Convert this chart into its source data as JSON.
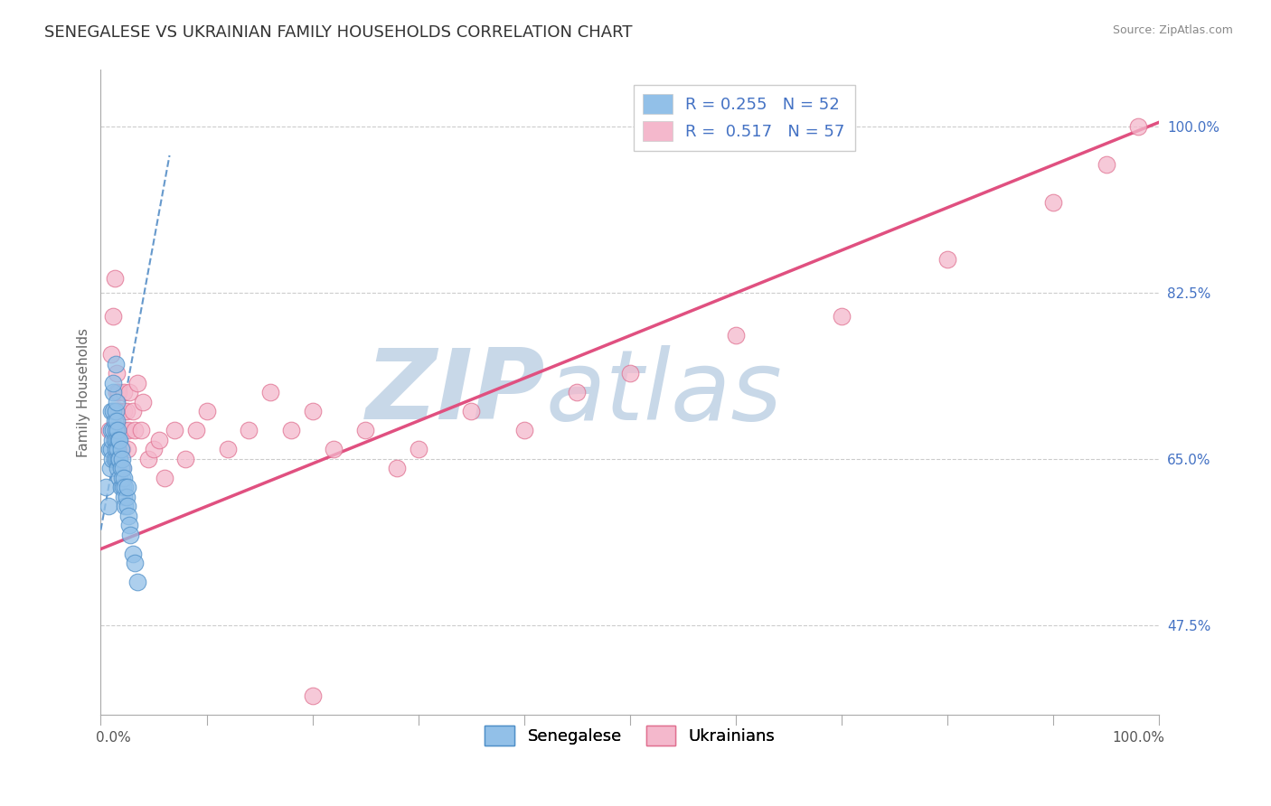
{
  "title": "SENEGALESE VS UKRAINIAN FAMILY HOUSEHOLDS CORRELATION CHART",
  "source_text": "Source: ZipAtlas.com",
  "ylabel": "Family Households",
  "right_ytick_labels": [
    "47.5%",
    "65.0%",
    "82.5%",
    "100.0%"
  ],
  "right_ytick_values": [
    0.475,
    0.65,
    0.825,
    1.0
  ],
  "xlim": [
    0.0,
    1.0
  ],
  "ylim": [
    0.38,
    1.06
  ],
  "blue_color": "#92c0e8",
  "blue_edge_color": "#5090c8",
  "pink_color": "#f4b8cc",
  "pink_edge_color": "#e07090",
  "blue_line_color": "#6699cc",
  "pink_line_color": "#e05080",
  "watermark_zip": "ZIP",
  "watermark_atlas": "atlas",
  "watermark_color": "#c8d8e8",
  "grid_color": "#cccccc",
  "blue_R": 0.255,
  "blue_N": 52,
  "pink_R": 0.517,
  "pink_N": 57,
  "background_color": "#ffffff",
  "title_fontsize": 13,
  "axis_label_fontsize": 11,
  "tick_fontsize": 11,
  "legend_fontsize": 13,
  "marker_size": 180,
  "senegalese_x": [
    0.005,
    0.007,
    0.008,
    0.009,
    0.01,
    0.01,
    0.01,
    0.011,
    0.011,
    0.012,
    0.012,
    0.012,
    0.013,
    0.013,
    0.013,
    0.014,
    0.014,
    0.014,
    0.015,
    0.015,
    0.015,
    0.015,
    0.016,
    0.016,
    0.016,
    0.017,
    0.017,
    0.018,
    0.018,
    0.018,
    0.019,
    0.019,
    0.019,
    0.02,
    0.02,
    0.021,
    0.021,
    0.022,
    0.022,
    0.023,
    0.023,
    0.024,
    0.025,
    0.025,
    0.026,
    0.027,
    0.028,
    0.03,
    0.032,
    0.035,
    0.012,
    0.014
  ],
  "senegalese_y": [
    0.62,
    0.6,
    0.66,
    0.64,
    0.66,
    0.68,
    0.7,
    0.65,
    0.67,
    0.68,
    0.7,
    0.72,
    0.65,
    0.67,
    0.69,
    0.66,
    0.68,
    0.7,
    0.65,
    0.67,
    0.69,
    0.71,
    0.64,
    0.66,
    0.68,
    0.65,
    0.67,
    0.63,
    0.65,
    0.67,
    0.62,
    0.64,
    0.66,
    0.63,
    0.65,
    0.62,
    0.64,
    0.61,
    0.63,
    0.6,
    0.62,
    0.61,
    0.6,
    0.62,
    0.59,
    0.58,
    0.57,
    0.55,
    0.54,
    0.52,
    0.73,
    0.75
  ],
  "ukrainian_x": [
    0.008,
    0.01,
    0.012,
    0.013,
    0.014,
    0.015,
    0.015,
    0.016,
    0.017,
    0.017,
    0.018,
    0.018,
    0.019,
    0.019,
    0.02,
    0.02,
    0.021,
    0.022,
    0.022,
    0.023,
    0.024,
    0.025,
    0.026,
    0.027,
    0.03,
    0.032,
    0.035,
    0.038,
    0.04,
    0.045,
    0.05,
    0.055,
    0.06,
    0.07,
    0.08,
    0.09,
    0.1,
    0.12,
    0.14,
    0.16,
    0.18,
    0.2,
    0.22,
    0.25,
    0.28,
    0.3,
    0.35,
    0.4,
    0.45,
    0.5,
    0.6,
    0.7,
    0.8,
    0.9,
    0.95,
    0.98,
    0.2
  ],
  "ukrainian_y": [
    0.68,
    0.76,
    0.8,
    0.84,
    0.7,
    0.72,
    0.74,
    0.68,
    0.7,
    0.72,
    0.68,
    0.7,
    0.66,
    0.68,
    0.64,
    0.66,
    0.68,
    0.7,
    0.72,
    0.68,
    0.7,
    0.66,
    0.68,
    0.72,
    0.7,
    0.68,
    0.73,
    0.68,
    0.71,
    0.65,
    0.66,
    0.67,
    0.63,
    0.68,
    0.65,
    0.68,
    0.7,
    0.66,
    0.68,
    0.72,
    0.68,
    0.7,
    0.66,
    0.68,
    0.64,
    0.66,
    0.7,
    0.68,
    0.72,
    0.74,
    0.78,
    0.8,
    0.86,
    0.92,
    0.96,
    1.0,
    0.4
  ],
  "blue_line_x0": 0.0,
  "blue_line_x1": 0.065,
  "blue_line_y0": 0.575,
  "blue_line_y1": 0.97,
  "pink_line_x0": 0.0,
  "pink_line_x1": 1.0,
  "pink_line_y0": 0.555,
  "pink_line_y1": 1.005
}
